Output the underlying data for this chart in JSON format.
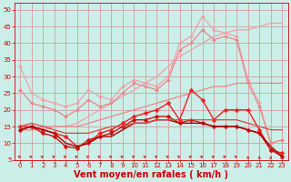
{
  "bg_color": "#cceee8",
  "grid_color": "#d0a0a0",
  "xlabel": "Vent moyen/en rafales ( km/h )",
  "ylim": [
    5,
    52
  ],
  "xlim": [
    -0.5,
    23.5
  ],
  "yticks": [
    5,
    10,
    15,
    20,
    25,
    30,
    35,
    40,
    45,
    50
  ],
  "xticks": [
    0,
    1,
    2,
    3,
    4,
    5,
    6,
    7,
    8,
    9,
    10,
    11,
    12,
    13,
    14,
    15,
    16,
    17,
    18,
    19,
    20,
    21,
    22,
    23
  ],
  "series": [
    {
      "color": "#f0a0a8",
      "linewidth": 0.9,
      "marker": null,
      "linestyle": "-",
      "x": [
        0,
        1,
        2,
        3,
        4,
        5,
        6,
        7,
        8,
        9,
        10,
        11,
        12,
        13,
        14,
        15,
        16,
        17,
        18,
        19,
        20,
        21,
        22,
        23
      ],
      "y": [
        14,
        14,
        14,
        15,
        15,
        16,
        18,
        20,
        22,
        24,
        26,
        28,
        30,
        33,
        36,
        38,
        40,
        42,
        43,
        44,
        44,
        45,
        46,
        46
      ]
    },
    {
      "color": "#f0a0a8",
      "linewidth": 0.9,
      "marker": "D",
      "markersize": 2,
      "linestyle": "-",
      "x": [
        0,
        1,
        2,
        3,
        4,
        5,
        6,
        7,
        8,
        9,
        10,
        11,
        12,
        13,
        14,
        15,
        16,
        17,
        18,
        19,
        20,
        21,
        22,
        23
      ],
      "y": [
        33,
        25,
        23,
        22,
        21,
        22,
        26,
        24,
        23,
        27,
        29,
        28,
        27,
        30,
        40,
        42,
        48,
        44,
        43,
        42,
        29,
        22,
        10,
        11
      ]
    },
    {
      "color": "#e88888",
      "linewidth": 0.9,
      "marker": null,
      "linestyle": "-",
      "x": [
        0,
        1,
        2,
        3,
        4,
        5,
        6,
        7,
        8,
        9,
        10,
        11,
        12,
        13,
        14,
        15,
        16,
        17,
        18,
        19,
        20,
        21,
        22,
        23
      ],
      "y": [
        14,
        14,
        15,
        15,
        15,
        15,
        16,
        17,
        18,
        19,
        20,
        21,
        22,
        23,
        24,
        25,
        26,
        27,
        27,
        28,
        28,
        28,
        28,
        28
      ]
    },
    {
      "color": "#e88888",
      "linewidth": 0.9,
      "marker": "D",
      "markersize": 2,
      "linestyle": "-",
      "x": [
        0,
        1,
        2,
        3,
        4,
        5,
        6,
        7,
        8,
        9,
        10,
        11,
        12,
        13,
        14,
        15,
        16,
        17,
        18,
        19,
        20,
        21,
        22,
        23
      ],
      "y": [
        26,
        22,
        21,
        20,
        18,
        20,
        23,
        21,
        22,
        25,
        28,
        27,
        26,
        29,
        38,
        40,
        44,
        41,
        42,
        41,
        28,
        21,
        10,
        11
      ]
    },
    {
      "color": "#ee2222",
      "linewidth": 1.0,
      "marker": "D",
      "markersize": 2.5,
      "linestyle": "-",
      "x": [
        0,
        1,
        2,
        3,
        4,
        5,
        6,
        7,
        8,
        9,
        10,
        11,
        12,
        13,
        14,
        15,
        16,
        17,
        18,
        19,
        20,
        21,
        22,
        23
      ],
      "y": [
        15,
        15,
        14,
        13,
        12,
        9,
        10,
        13,
        14,
        16,
        18,
        19,
        20,
        22,
        17,
        26,
        23,
        17,
        20,
        20,
        20,
        14,
        8,
        7
      ]
    },
    {
      "color": "#cc1111",
      "linewidth": 1.0,
      "marker": "D",
      "markersize": 2.5,
      "linestyle": "-",
      "x": [
        0,
        1,
        2,
        3,
        4,
        5,
        6,
        7,
        8,
        9,
        10,
        11,
        12,
        13,
        14,
        15,
        16,
        17,
        18,
        19,
        20,
        21,
        22,
        23
      ],
      "y": [
        14,
        15,
        13,
        12,
        9,
        8.5,
        11,
        12,
        13,
        15,
        17,
        17,
        18,
        18,
        16,
        17,
        16,
        15,
        15,
        15,
        14,
        13,
        8,
        6
      ]
    },
    {
      "color": "#aa0000",
      "linewidth": 1.0,
      "marker": null,
      "linestyle": "-",
      "x": [
        0,
        1,
        2,
        3,
        4,
        5,
        6,
        7,
        8,
        9,
        10,
        11,
        12,
        13,
        14,
        15,
        16,
        17,
        18,
        19,
        20,
        21,
        22,
        23
      ],
      "y": [
        14,
        15,
        14,
        13,
        10,
        9,
        10,
        12,
        12,
        14,
        16,
        16,
        17,
        17,
        16,
        16,
        16,
        15,
        15,
        15,
        14,
        13,
        9,
        6
      ]
    },
    {
      "color": "#dd4444",
      "linewidth": 0.9,
      "marker": null,
      "linestyle": "-",
      "x": [
        0,
        1,
        2,
        3,
        4,
        5,
        6,
        7,
        8,
        9,
        10,
        11,
        12,
        13,
        14,
        15,
        16,
        17,
        18,
        19,
        20,
        21,
        22,
        23
      ],
      "y": [
        15,
        16,
        15,
        14,
        13,
        13,
        13,
        14,
        15,
        15,
        16,
        16,
        17,
        17,
        17,
        17,
        17,
        17,
        17,
        17,
        16,
        15,
        14,
        14
      ]
    }
  ],
  "arrows": {
    "color": "#cc1111",
    "y_data": 6.0,
    "angles": [
      45,
      45,
      45,
      45,
      45,
      45,
      45,
      45,
      45,
      45,
      45,
      45,
      45,
      45,
      45,
      45,
      45,
      45,
      45,
      45,
      90,
      90,
      90,
      90
    ]
  },
  "xlabel_color": "#cc0000",
  "xlabel_fontsize": 7,
  "tick_fontsize": 5,
  "tick_color": "#cc0000"
}
